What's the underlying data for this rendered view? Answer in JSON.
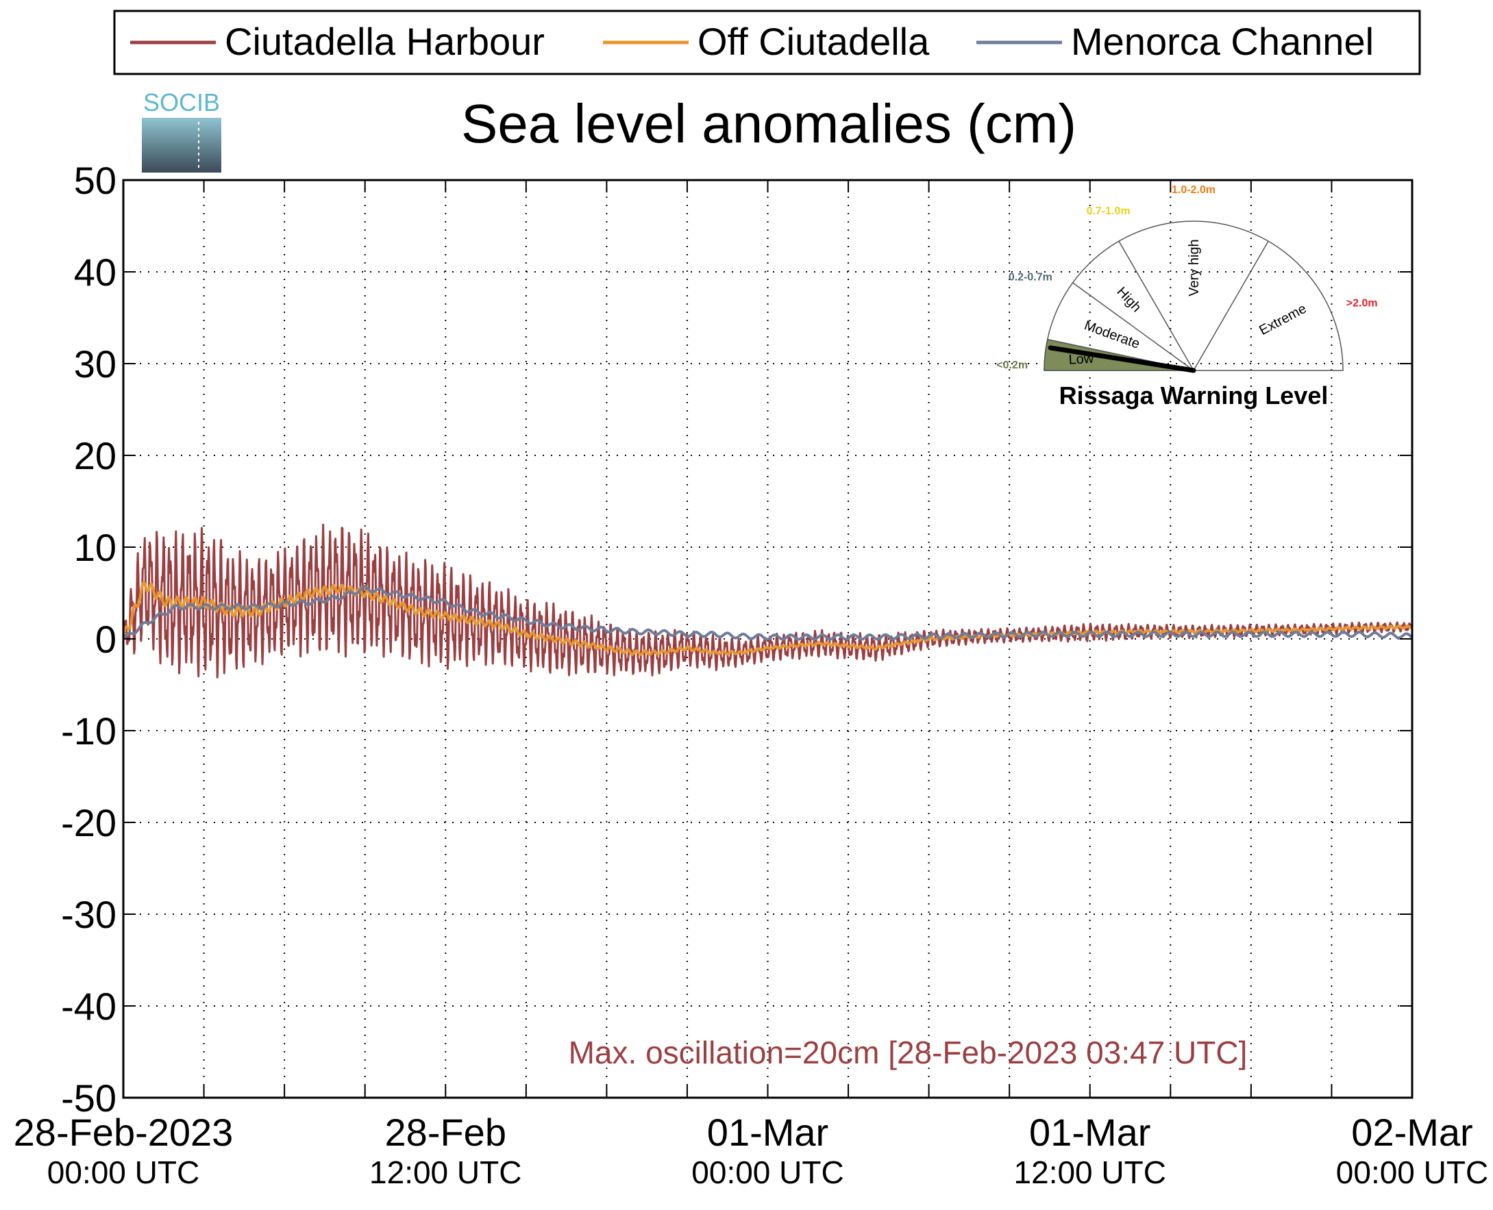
{
  "chart_data": {
    "type": "line",
    "title": "Sea level anomalies (cm)",
    "xlabel": "",
    "ylabel": "",
    "ylim": [
      -50,
      50
    ],
    "yticks": [
      50,
      40,
      30,
      20,
      10,
      0,
      -10,
      -20,
      -30,
      -40,
      -50
    ],
    "ytick_labels": [
      "50",
      "40",
      "30",
      "20",
      "10",
      "0",
      "-10",
      "-20",
      "-30",
      "-40",
      "-50"
    ],
    "x_hours_range": [
      0,
      48
    ],
    "xticks": [
      {
        "line1": "28-Feb-2023",
        "line2": "00:00 UTC",
        "hour": 0
      },
      {
        "line1": "28-Feb",
        "line2": "12:00 UTC",
        "hour": 12
      },
      {
        "line1": "01-Mar",
        "line2": "00:00 UTC",
        "hour": 24
      },
      {
        "line1": "01-Mar",
        "line2": "12:00 UTC",
        "hour": 36
      },
      {
        "line1": "02-Mar",
        "line2": "00:00 UTC",
        "hour": 48
      }
    ],
    "minor_grid_hours": [
      3,
      6,
      9,
      15,
      18,
      21,
      27,
      30,
      33,
      39,
      42,
      45
    ],
    "grid": true,
    "legend_position": "top",
    "annotation": "Max. oscillation=20cm [28-Feb-2023 03:47 UTC]",
    "series": [
      {
        "name": "Ciutadella Harbour",
        "color": "#9b3f42",
        "x": [
          0,
          0.4,
          0.8,
          1.2,
          1.6,
          2,
          2.5,
          3,
          3.5,
          4,
          5,
          6,
          7,
          8,
          9,
          10,
          11,
          12,
          13,
          14,
          15,
          16,
          17,
          18,
          19,
          20,
          21,
          22,
          23,
          24,
          26,
          28,
          30,
          32,
          34,
          36,
          38,
          40,
          42,
          44,
          46,
          48
        ],
        "values": [
          0,
          3,
          6,
          5,
          4,
          4,
          4,
          4,
          3.5,
          3,
          3,
          4,
          5,
          5.5,
          5,
          4,
          3,
          2.5,
          2,
          1.5,
          0.5,
          0,
          -0.5,
          -1,
          -1.5,
          -1.5,
          -1,
          -1.5,
          -1.5,
          -1,
          -0.5,
          -1,
          0,
          0.3,
          0.5,
          0.7,
          0.8,
          0.8,
          0.9,
          1,
          1.2,
          1.3
        ],
        "amplitude": [
          1,
          5,
          6,
          7,
          8,
          8,
          8,
          8.5,
          8,
          7,
          6,
          6,
          7,
          7.5,
          7,
          6,
          6,
          6,
          5,
          4.5,
          4,
          4,
          3.5,
          3,
          2.5,
          2.5,
          2,
          2,
          1.5,
          1.5,
          1.5,
          1.5,
          1,
          0.8,
          0.8,
          1,
          0.8,
          0.7,
          0.7,
          0.6,
          0.6,
          0.5
        ]
      },
      {
        "name": "Off Ciutadella",
        "color": "#e8962e",
        "x": [
          0,
          0.4,
          0.8,
          1.2,
          1.6,
          2,
          2.5,
          3,
          3.5,
          4,
          5,
          6,
          7,
          8,
          9,
          10,
          11,
          12,
          13,
          14,
          15,
          16,
          17,
          18,
          19,
          20,
          21,
          22,
          23,
          24,
          26,
          28,
          30,
          32,
          34,
          36,
          38,
          40,
          42,
          44,
          46,
          48
        ],
        "values": [
          0,
          3,
          6,
          5,
          4,
          4,
          4,
          4,
          3.5,
          3,
          3,
          4,
          5,
          5.5,
          5,
          4,
          3,
          2.5,
          2,
          1.5,
          0.5,
          0,
          -0.5,
          -1,
          -1.5,
          -1.5,
          -1,
          -1.5,
          -1.5,
          -1,
          -0.5,
          -1,
          0,
          0.3,
          0.5,
          0.7,
          0.8,
          0.8,
          0.9,
          1,
          1.2,
          1.3
        ]
      },
      {
        "name": "Menorca Channel",
        "color": "#6f7d99",
        "x": [
          0,
          0.5,
          1,
          2,
          3,
          4,
          5,
          6,
          7,
          8,
          9,
          10,
          11,
          12,
          13,
          14,
          15,
          16,
          17,
          18,
          19,
          20,
          21,
          22,
          23,
          24,
          26,
          28,
          30,
          32,
          34,
          36,
          38,
          40,
          42,
          44,
          46,
          48
        ],
        "values": [
          0,
          1,
          2,
          3.5,
          3.5,
          3.5,
          3.5,
          3.8,
          4,
          4.5,
          5.5,
          5,
          4.5,
          4,
          3,
          2.5,
          2,
          1.5,
          1.2,
          1,
          0.8,
          0.7,
          0.5,
          0.5,
          0.3,
          0.2,
          0.2,
          0.2,
          0.3,
          0.4,
          0.5,
          0.5,
          0.5,
          0.5,
          0.5,
          0.5,
          0.5,
          0.3
        ]
      }
    ]
  },
  "logo": {
    "text": "SOCIB"
  },
  "warning_gauge": {
    "title": "Rissaga Warning Level",
    "current_level": "Low",
    "sectors": [
      {
        "label": "Low",
        "range": "<0.2m",
        "range_color": "#6b7a4a"
      },
      {
        "label": "Moderate",
        "range": "0.2-0.7m",
        "range_color": "#4f6a6e"
      },
      {
        "label": "High",
        "range": "0.7-1.0m",
        "range_color": "#e8d21c"
      },
      {
        "label": "Very high",
        "range": "1.0-2.0m",
        "range_color": "#f07a10"
      },
      {
        "label": "Extreme",
        "range": ">2.0m",
        "range_color": "#e0202a"
      }
    ],
    "active_fill": "#7d8c58"
  }
}
